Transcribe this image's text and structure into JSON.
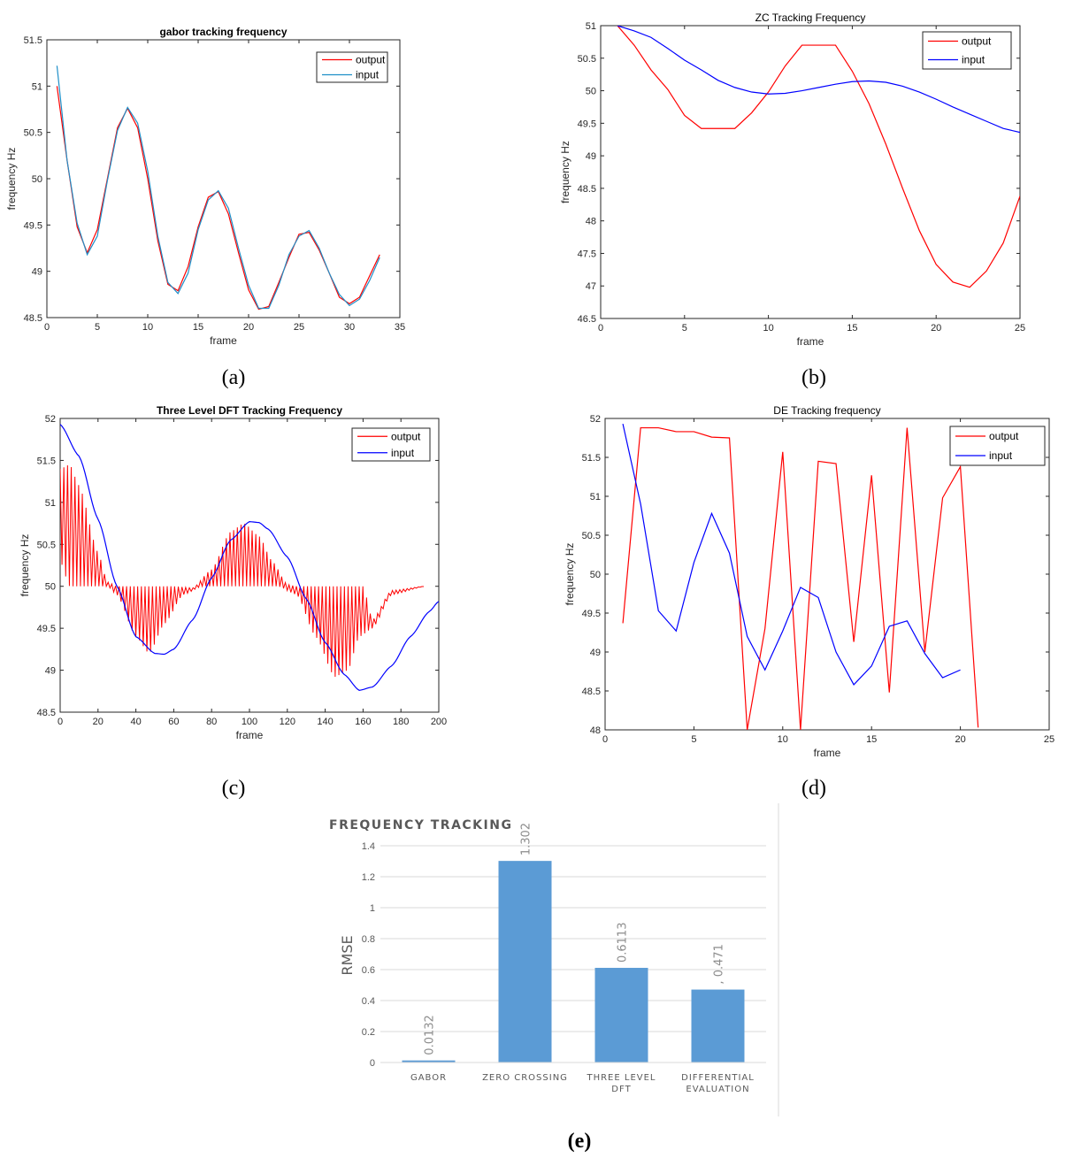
{
  "captions": [
    "(a)",
    "(b)",
    "(c)",
    "(d)",
    "(e)"
  ],
  "colors": {
    "output": "#ff0000",
    "input_a": "#1f8fc8",
    "input": "#0000ff",
    "bar": "#5b9bd5"
  },
  "chart_data": [
    {
      "type": "line",
      "title": "gabor tracking frequency",
      "xlabel": "frame",
      "ylabel": "frequency Hz",
      "xlim": [
        0,
        35
      ],
      "ylim": [
        48.5,
        51.5
      ],
      "xticks": [
        0,
        5,
        10,
        15,
        20,
        25,
        30,
        35
      ],
      "yticks": [
        48.5,
        49,
        49.5,
        50,
        50.5,
        51,
        51.5
      ],
      "legend_position": "top-right",
      "series": [
        {
          "name": "output",
          "x": [
            1,
            2,
            3,
            4,
            5,
            6,
            7,
            8,
            9,
            10,
            11,
            12,
            13,
            14,
            15,
            16,
            17,
            18,
            19,
            20,
            21,
            22,
            23,
            24,
            25,
            26,
            27,
            28,
            29,
            30,
            31,
            32,
            33
          ],
          "y": [
            51.0,
            50.2,
            49.48,
            49.2,
            49.45,
            50.0,
            50.55,
            50.76,
            50.55,
            50.0,
            49.33,
            48.86,
            48.79,
            49.05,
            49.48,
            49.8,
            49.86,
            49.62,
            49.2,
            48.8,
            48.59,
            48.62,
            48.88,
            49.15,
            49.4,
            49.42,
            49.23,
            48.98,
            48.72,
            48.65,
            48.72,
            48.95,
            49.18
          ]
        },
        {
          "name": "input",
          "x": [
            1,
            2,
            3,
            4,
            5,
            6,
            7,
            8,
            9,
            10,
            11,
            12,
            13,
            14,
            15,
            16,
            17,
            18,
            19,
            20,
            21,
            22,
            23,
            24,
            25,
            26,
            27,
            28,
            29,
            30,
            31,
            32,
            33
          ],
          "y": [
            51.22,
            50.2,
            49.52,
            49.18,
            49.38,
            49.98,
            50.52,
            50.77,
            50.6,
            50.08,
            49.38,
            48.88,
            48.76,
            48.98,
            49.45,
            49.77,
            49.87,
            49.68,
            49.25,
            48.85,
            48.6,
            48.6,
            48.85,
            49.18,
            49.38,
            49.44,
            49.25,
            48.98,
            48.75,
            48.63,
            48.7,
            48.9,
            49.15
          ]
        }
      ]
    },
    {
      "type": "line",
      "title": "ZC Tracking Frequency",
      "xlabel": "frame",
      "ylabel": "frequency Hz",
      "xlim": [
        0,
        25
      ],
      "ylim": [
        46.5,
        51
      ],
      "xticks": [
        0,
        5,
        10,
        15,
        20,
        25
      ],
      "yticks": [
        46.5,
        47,
        47.5,
        48,
        48.5,
        49,
        49.5,
        50,
        50.5,
        51
      ],
      "legend_position": "top-right",
      "series": [
        {
          "name": "output",
          "x": [
            1,
            2,
            3,
            4,
            5,
            6,
            7,
            8,
            9,
            10,
            11,
            12,
            13,
            14,
            15,
            16,
            17,
            18,
            19,
            20,
            21,
            22,
            23,
            24,
            25
          ],
          "y": [
            51.0,
            50.7,
            50.32,
            50.02,
            49.62,
            49.42,
            49.42,
            49.42,
            49.66,
            49.98,
            50.38,
            50.7,
            50.7,
            50.7,
            50.3,
            49.8,
            49.18,
            48.5,
            47.85,
            47.33,
            47.06,
            46.98,
            47.23,
            47.66,
            48.38
          ]
        },
        {
          "name": "input",
          "x": [
            1,
            2,
            3,
            4,
            5,
            6,
            7,
            8,
            9,
            10,
            11,
            12,
            13,
            14,
            15,
            16,
            17,
            18,
            19,
            20,
            21,
            22,
            23,
            24,
            25
          ],
          "y": [
            51.0,
            50.92,
            50.82,
            50.65,
            50.47,
            50.32,
            50.16,
            50.05,
            49.98,
            49.95,
            49.96,
            50.0,
            50.05,
            50.1,
            50.14,
            50.15,
            50.13,
            50.07,
            49.98,
            49.87,
            49.75,
            49.64,
            49.53,
            49.42,
            49.36
          ]
        }
      ]
    },
    {
      "type": "line",
      "title": "Three Level DFT Tracking Frequency",
      "xlabel": "frame",
      "ylabel": "frequency Hz",
      "xlim": [
        0,
        200
      ],
      "ylim": [
        48.5,
        52
      ],
      "xticks": [
        0,
        20,
        40,
        60,
        80,
        100,
        120,
        140,
        160,
        180,
        200
      ],
      "yticks": [
        48.5,
        49,
        49.5,
        50,
        50.5,
        51,
        51.5,
        52
      ],
      "legend_position": "top-right",
      "series": [
        {
          "name": "output"
        },
        {
          "name": "input"
        }
      ]
    },
    {
      "type": "line",
      "title": "DE Tracking frequency",
      "xlabel": "frame",
      "ylabel": "frequency Hz",
      "xlim": [
        0,
        25
      ],
      "ylim": [
        48,
        52
      ],
      "xticks": [
        0,
        5,
        10,
        15,
        20,
        25
      ],
      "yticks": [
        48,
        48.5,
        49,
        49.5,
        50,
        50.5,
        51,
        51.5,
        52
      ],
      "legend_position": "top-right",
      "series": [
        {
          "name": "output",
          "x": [
            1,
            2,
            3,
            4,
            5,
            6,
            7,
            8,
            9,
            10,
            11,
            12,
            13,
            14,
            15,
            16,
            17,
            18,
            19,
            20,
            21
          ],
          "y": [
            49.37,
            51.88,
            51.88,
            51.83,
            51.83,
            51.76,
            51.75,
            48.0,
            49.3,
            51.57,
            48.0,
            51.45,
            51.42,
            49.13,
            51.27,
            48.48,
            51.88,
            49.0,
            50.98,
            51.38,
            48.03
          ]
        },
        {
          "name": "input",
          "x": [
            1,
            2,
            3,
            4,
            5,
            6,
            7,
            8,
            9,
            10,
            11,
            12,
            13,
            14,
            15,
            16,
            17,
            18,
            19,
            20
          ],
          "y": [
            51.93,
            50.9,
            49.53,
            49.27,
            50.15,
            50.78,
            50.27,
            49.2,
            48.77,
            49.27,
            49.83,
            49.7,
            49.0,
            48.58,
            48.82,
            49.33,
            49.4,
            48.98,
            48.67,
            48.77
          ]
        }
      ]
    },
    {
      "type": "bar",
      "title": "FREQUENCY TRACKING",
      "xlabel": "",
      "ylabel": "RMSE",
      "ylim": [
        0,
        1.4
      ],
      "yticks": [
        0,
        0.2,
        0.4,
        0.6,
        0.8,
        1,
        1.2,
        1.4
      ],
      "categories": [
        [
          "GABOR"
        ],
        [
          "ZERO CROSSING"
        ],
        [
          "THREE LEVEL",
          "DFT"
        ],
        [
          "DIFFERENTIAL",
          "EVALUATION"
        ]
      ],
      "values": [
        0.0132,
        1.302,
        0.6113,
        0.471
      ],
      "value_labels": [
        "0.0132",
        "1.302",
        "0.6113",
        ", 0.471"
      ]
    }
  ]
}
